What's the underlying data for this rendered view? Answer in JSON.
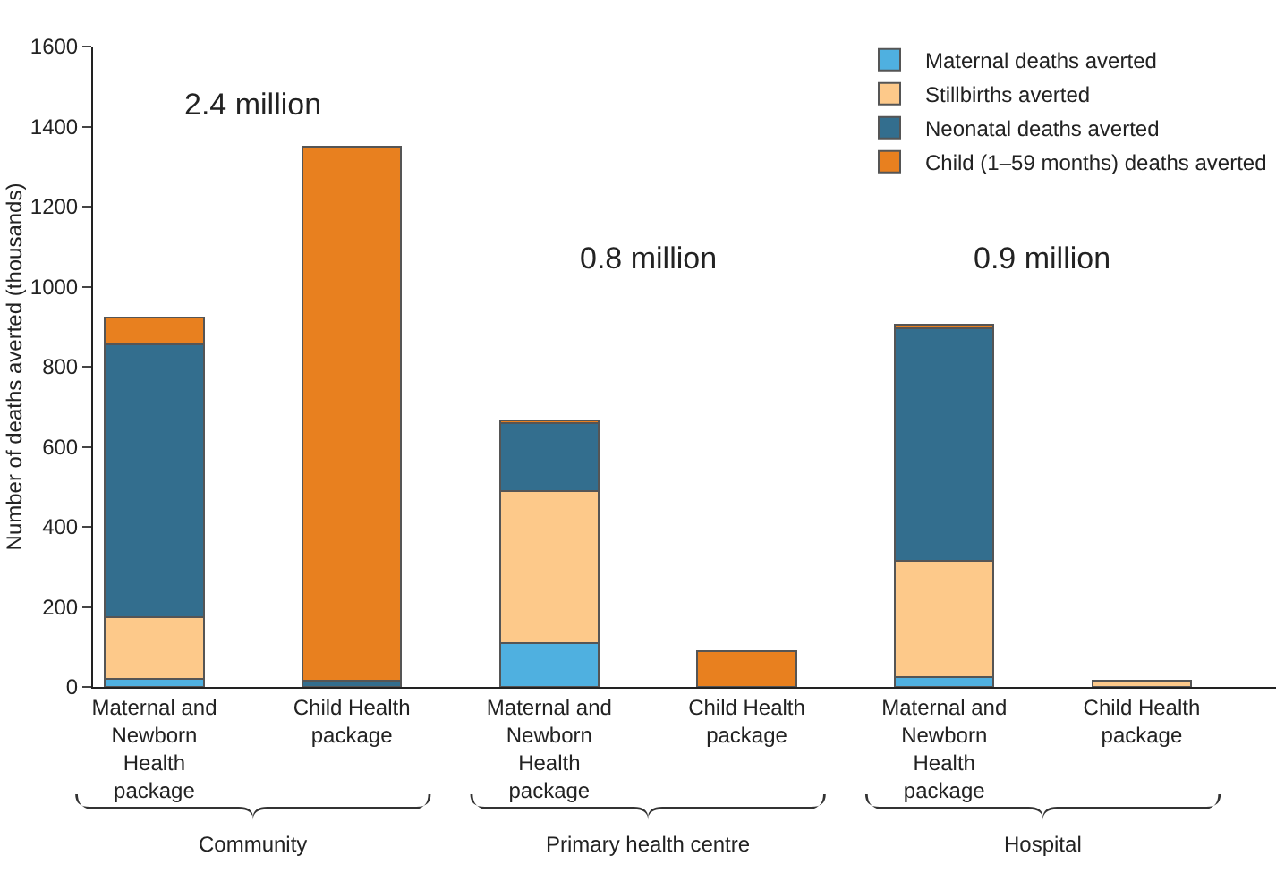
{
  "chart_data": {
    "type": "bar",
    "stacked": true,
    "ylabel": "Number of deaths averted (thousands)",
    "categories": [
      "Maternal and Newborn Health package",
      "Child Health package",
      "Maternal and Newborn Health package",
      "Child Health package",
      "Maternal and Newborn Health package",
      "Child Health package"
    ],
    "series": [
      {
        "name": "Maternal deaths averted",
        "color": "#4fb0e0",
        "values": [
          20,
          0,
          110,
          0,
          25,
          0
        ]
      },
      {
        "name": "Stillbirths averted",
        "color": "#fdc98a",
        "values": [
          155,
          0,
          380,
          0,
          290,
          15
        ]
      },
      {
        "name": "Neonatal deaths averted",
        "color": "#336e8e",
        "values": [
          680,
          15,
          170,
          0,
          580,
          0
        ]
      },
      {
        "name": "Child (1–59 months) deaths averted",
        "color": "#e8801f",
        "values": [
          67,
          1335,
          5,
          90,
          10,
          0
        ]
      }
    ],
    "ylim": [
      0,
      1600
    ],
    "yticks": [
      0,
      200,
      400,
      600,
      800,
      1000,
      1200,
      1400,
      1600
    ],
    "grid": false,
    "legend": "top right",
    "annotations": [
      "2.4 million",
      "0.8 million",
      "0.9 million",
      "Community",
      "Primary health centre",
      "Hospital"
    ]
  }
}
